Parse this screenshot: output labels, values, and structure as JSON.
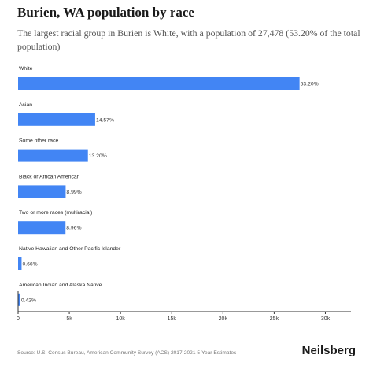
{
  "header": {
    "title": "Burien, WA population by race",
    "subtitle": "The largest racial group in Burien is White, with a population of 27,478 (53.20% of the total population)"
  },
  "footer": {
    "source": "Source: U.S. Census Bureau, American Community Survey (ACS) 2017-2021 5-Year Estimates",
    "brand": "Neilsberg"
  },
  "chart_data": {
    "type": "bar",
    "orientation": "horizontal",
    "categories": [
      "White",
      "Asian",
      "Some other race",
      "Black or African American",
      "Two or more races (multiracial)",
      "Native Hawaiian and Other Pacific Islander",
      "American Indian and Alaska Native"
    ],
    "values": [
      27478,
      7525,
      6818,
      4643,
      4628,
      341,
      217
    ],
    "data_labels": [
      "53.20%",
      "14.57%",
      "13.20%",
      "8.99%",
      "8.96%",
      "0.66%",
      "0.42%"
    ],
    "x_ticks": [
      0,
      5000,
      10000,
      15000,
      20000,
      25000,
      30000
    ],
    "x_tick_labels": [
      "0",
      "5k",
      "10k",
      "15k",
      "20k",
      "25k",
      "30k"
    ],
    "xlim": [
      0,
      32500
    ],
    "bar_color": "#4285f4",
    "grid": false,
    "legend": "none"
  }
}
